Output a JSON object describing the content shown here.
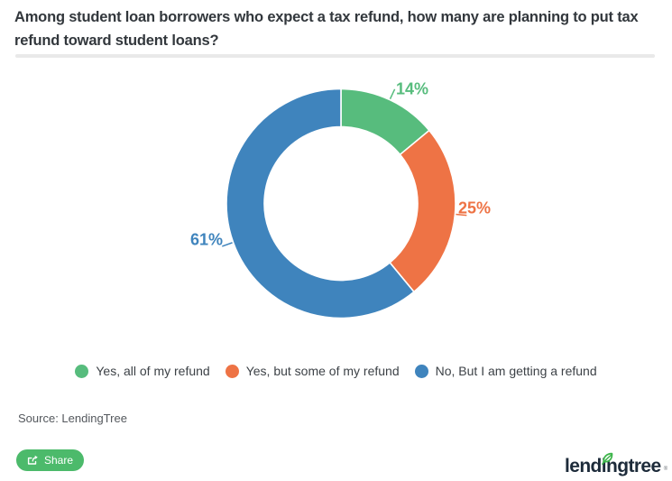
{
  "header": {
    "title": "Among student loan borrowers who expect a tax refund, how many are planning to put tax refund toward student loans?"
  },
  "chart_data": {
    "type": "pie",
    "subtype": "donut",
    "title": "Among student loan borrowers who expect a tax refund, how many are planning to put tax refund toward student loans?",
    "categories": [
      "Yes, all of my refund",
      "Yes, but some of my refund",
      "No, But I am getting a refund"
    ],
    "values": [
      14,
      25,
      61
    ],
    "unit": "%",
    "data_labels": [
      "14%",
      "25%",
      "61%"
    ],
    "colors": [
      "#57bc7d",
      "#ee7345",
      "#3f84bd"
    ],
    "start_angle_deg": 0,
    "direction": "clockwise",
    "inner_radius_ratio": 0.67,
    "legend_position": "bottom"
  },
  "legend": {
    "items": [
      {
        "label": "Yes, all of my refund",
        "color": "#57bc7d"
      },
      {
        "label": "Yes, but some of my refund",
        "color": "#ee7345"
      },
      {
        "label": "No, But I am getting a refund",
        "color": "#3f84bd"
      }
    ]
  },
  "source": {
    "text": "Source: LendingTree"
  },
  "footer": {
    "share_button": {
      "label": "Share",
      "color": "#4cba6b"
    },
    "brand": {
      "wordmark": "lendingtree",
      "registered_mark": "®",
      "text_color": "#1d2b3a",
      "leaf_color": "#3db54a"
    }
  }
}
